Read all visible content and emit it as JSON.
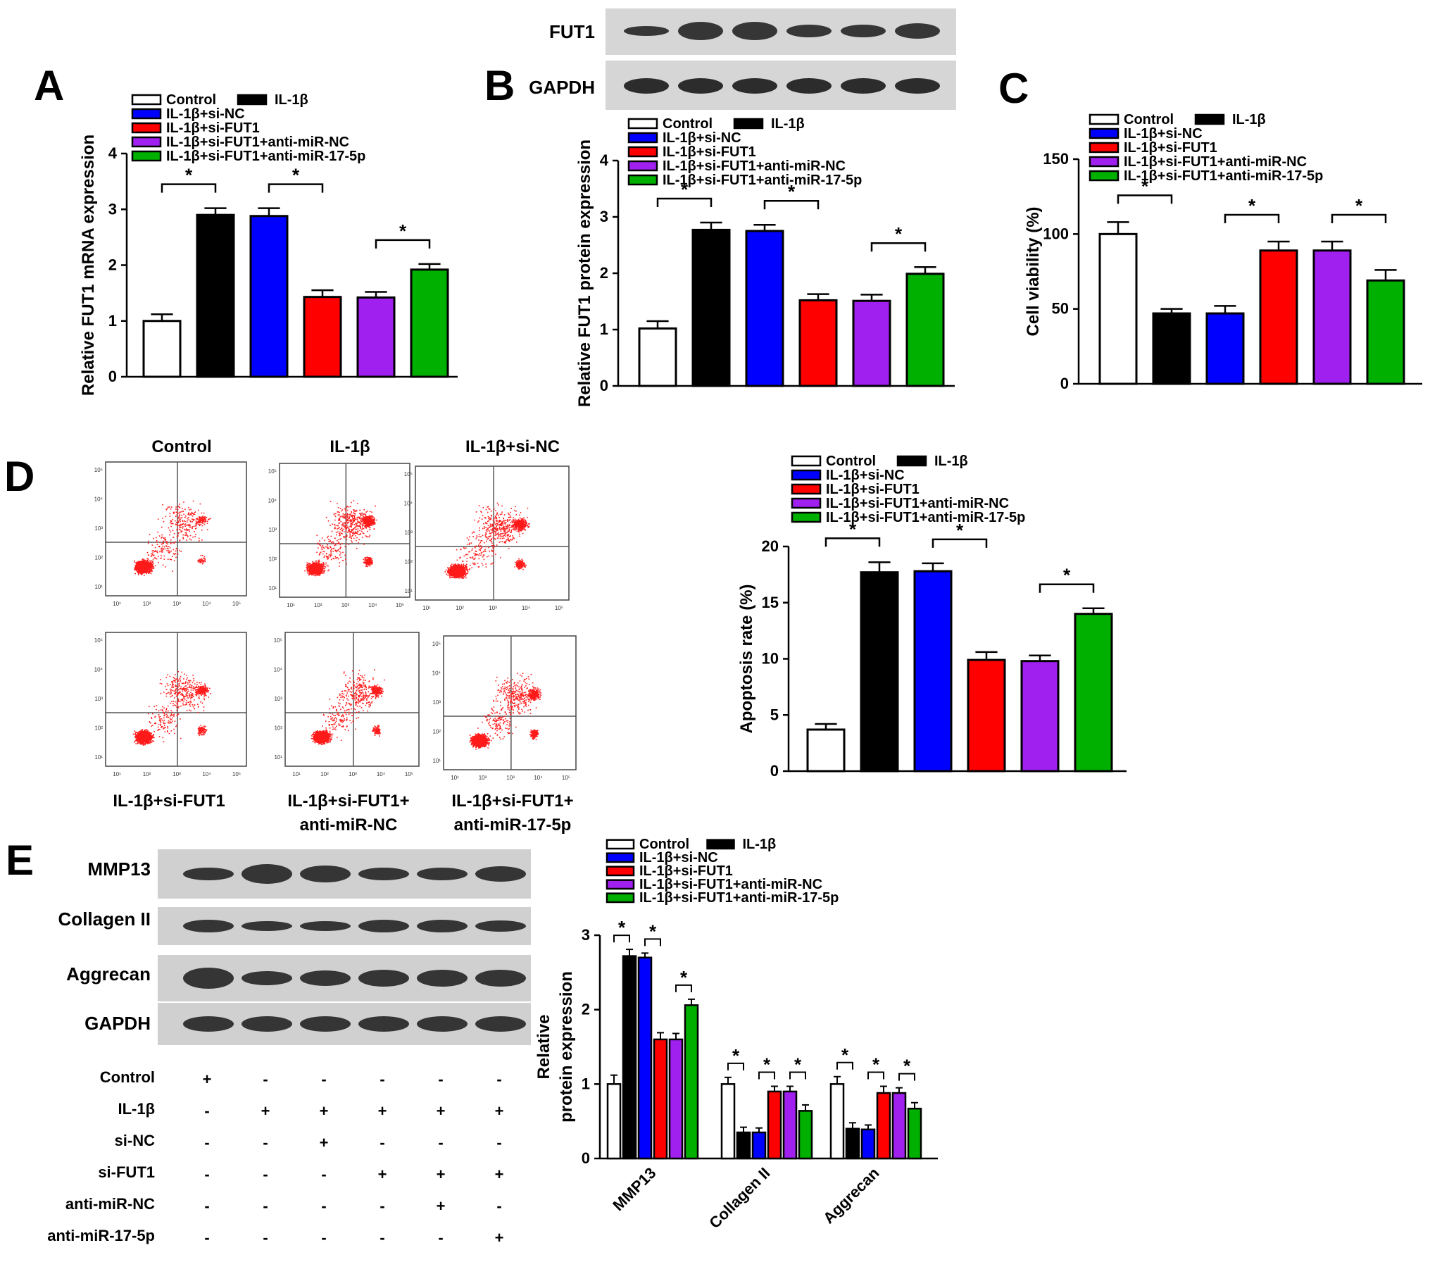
{
  "panels": {
    "A": "A",
    "B": "B",
    "C": "C",
    "D": "D",
    "E": "E"
  },
  "groups": [
    "Control",
    "IL-1β",
    "IL-1β+si-NC",
    "IL-1β+si-FUT1",
    "IL-1β+si-FUT1+anti-miR-NC",
    "IL-1β+si-FUT1+anti-miR-17-5p"
  ],
  "colors": [
    "#ffffff",
    "#000000",
    "#0000ff",
    "#ff0000",
    "#a020f0",
    "#00b000"
  ],
  "significance_mark": "*",
  "blot_B": {
    "fut1_label": "FUT1",
    "gapdh_label": "GAPDH"
  },
  "blot_E": {
    "rows": [
      "MMP13",
      "Collagen II",
      "Aggrecan",
      "GAPDH"
    ],
    "conditions": [
      {
        "label": "Control",
        "values": [
          "+",
          "-",
          "-",
          "-",
          "-",
          "-"
        ]
      },
      {
        "label": "IL-1β",
        "values": [
          "-",
          "+",
          "+",
          "+",
          "+",
          "+"
        ]
      },
      {
        "label": "si-NC",
        "values": [
          "-",
          "-",
          "+",
          "-",
          "-",
          "-"
        ]
      },
      {
        "label": "si-FUT1",
        "values": [
          "-",
          "-",
          "-",
          "+",
          "+",
          "+"
        ]
      },
      {
        "label": "anti-miR-NC",
        "values": [
          "-",
          "-",
          "-",
          "-",
          "+",
          "-"
        ]
      },
      {
        "label": "anti-miR-17-5p",
        "values": [
          "-",
          "-",
          "-",
          "-",
          "-",
          "+"
        ]
      }
    ]
  },
  "flow_D": {
    "titles_top": [
      "Control",
      "IL-1β",
      "IL-1β+si-NC"
    ],
    "titles_bottom": [
      [
        "IL-1β+si-FUT1"
      ],
      [
        "IL-1β+si-FUT1+",
        "anti-miR-NC"
      ],
      [
        "IL-1β+si-FUT1+",
        "anti-miR-17-5p"
      ]
    ],
    "x_ticks": [
      "10¹",
      "10²",
      "10³",
      "10⁴",
      "10⁵"
    ],
    "y_ticks": [
      "10¹",
      "10²",
      "10³",
      "10⁴",
      "10⁵"
    ]
  },
  "chart_data": [
    {
      "panel": "A",
      "type": "bar",
      "categories": [
        "Control",
        "IL-1β",
        "IL-1β+si-NC",
        "IL-1β+si-FUT1",
        "IL-1β+si-FUT1+anti-miR-NC",
        "IL-1β+si-FUT1+anti-miR-17-5p"
      ],
      "values": [
        1.0,
        2.9,
        2.88,
        1.43,
        1.42,
        1.92
      ],
      "errors": [
        0.12,
        0.12,
        0.14,
        0.12,
        0.1,
        0.1
      ],
      "ylabel": "Relative FUT1 mRNA expression",
      "xlabel": "",
      "ylim": [
        0,
        4
      ],
      "yticks": [
        0,
        1,
        2,
        3,
        4
      ],
      "significance": [
        [
          0,
          1
        ],
        [
          2,
          3
        ],
        [
          4,
          5
        ]
      ]
    },
    {
      "panel": "B",
      "type": "bar",
      "categories": [
        "Control",
        "IL-1β",
        "IL-1β+si-NC",
        "IL-1β+si-FUT1",
        "IL-1β+si-FUT1+anti-miR-NC",
        "IL-1β+si-FUT1+anti-miR-17-5p"
      ],
      "values": [
        1.02,
        2.77,
        2.75,
        1.52,
        1.51,
        1.99
      ],
      "errors": [
        0.13,
        0.13,
        0.11,
        0.11,
        0.11,
        0.12
      ],
      "ylabel": "Relative FUT1 protein expression",
      "xlabel": "",
      "ylim": [
        0,
        4
      ],
      "yticks": [
        0,
        1,
        2,
        3,
        4
      ],
      "significance": [
        [
          0,
          1
        ],
        [
          2,
          3
        ],
        [
          4,
          5
        ]
      ]
    },
    {
      "panel": "C",
      "type": "bar",
      "categories": [
        "Control",
        "IL-1β",
        "IL-1β+si-NC",
        "IL-1β+si-FUT1",
        "IL-1β+si-FUT1+anti-miR-NC",
        "IL-1β+si-FUT1+anti-miR-17-5p"
      ],
      "values": [
        100,
        47,
        47,
        89,
        89,
        69
      ],
      "errors": [
        8,
        3,
        5,
        6,
        6,
        7
      ],
      "ylabel": "Cell viability (%)",
      "xlabel": "",
      "ylim": [
        0,
        150
      ],
      "yticks": [
        0,
        50,
        100,
        150
      ],
      "significance": [
        [
          0,
          1
        ],
        [
          3,
          2
        ],
        [
          5,
          4
        ]
      ]
    },
    {
      "panel": "D",
      "type": "bar",
      "categories": [
        "Control",
        "IL-1β",
        "IL-1β+si-NC",
        "IL-1β+si-FUT1",
        "IL-1β+si-FUT1+anti-miR-NC",
        "IL-1β+si-FUT1+anti-miR-17-5p"
      ],
      "values": [
        3.7,
        17.7,
        17.8,
        9.9,
        9.8,
        14.0
      ],
      "errors": [
        0.5,
        0.9,
        0.7,
        0.7,
        0.5,
        0.5
      ],
      "ylabel": "Apoptosis rate (%)",
      "xlabel": "",
      "ylim": [
        0,
        20
      ],
      "yticks": [
        0,
        5,
        10,
        15,
        20
      ],
      "significance": [
        [
          0,
          1
        ],
        [
          2,
          3
        ],
        [
          4,
          5
        ]
      ]
    },
    {
      "panel": "E",
      "type": "bar",
      "categories": [
        "MMP13",
        "Collagen II",
        "Aggrecan"
      ],
      "series": [
        {
          "name": "Control",
          "values": [
            1.0,
            1.0,
            1.0
          ],
          "errors": [
            0.12,
            0.09,
            0.1
          ]
        },
        {
          "name": "IL-1β",
          "values": [
            2.72,
            0.35,
            0.4
          ],
          "errors": [
            0.09,
            0.07,
            0.08
          ]
        },
        {
          "name": "IL-1β+si-NC",
          "values": [
            2.7,
            0.35,
            0.39
          ],
          "errors": [
            0.06,
            0.06,
            0.06
          ]
        },
        {
          "name": "IL-1β+si-FUT1",
          "values": [
            1.6,
            0.9,
            0.88
          ],
          "errors": [
            0.09,
            0.07,
            0.09
          ]
        },
        {
          "name": "IL-1β+si-FUT1+anti-miR-NC",
          "values": [
            1.6,
            0.9,
            0.88
          ],
          "errors": [
            0.08,
            0.07,
            0.07
          ]
        },
        {
          "name": "IL-1β+si-FUT1+anti-miR-17-5p",
          "values": [
            2.06,
            0.64,
            0.67
          ],
          "errors": [
            0.08,
            0.08,
            0.08
          ]
        }
      ],
      "ylabel": "Relative protein expression",
      "xlabel": "",
      "ylim": [
        0,
        3
      ],
      "yticks": [
        0,
        1,
        2,
        3
      ],
      "significance": [
        [
          0,
          0,
          1
        ],
        [
          0,
          2,
          3
        ],
        [
          0,
          4,
          5
        ],
        [
          1,
          0,
          1
        ],
        [
          1,
          2,
          3
        ],
        [
          1,
          4,
          5
        ],
        [
          2,
          0,
          1
        ],
        [
          2,
          2,
          3
        ],
        [
          2,
          4,
          5
        ]
      ]
    }
  ]
}
